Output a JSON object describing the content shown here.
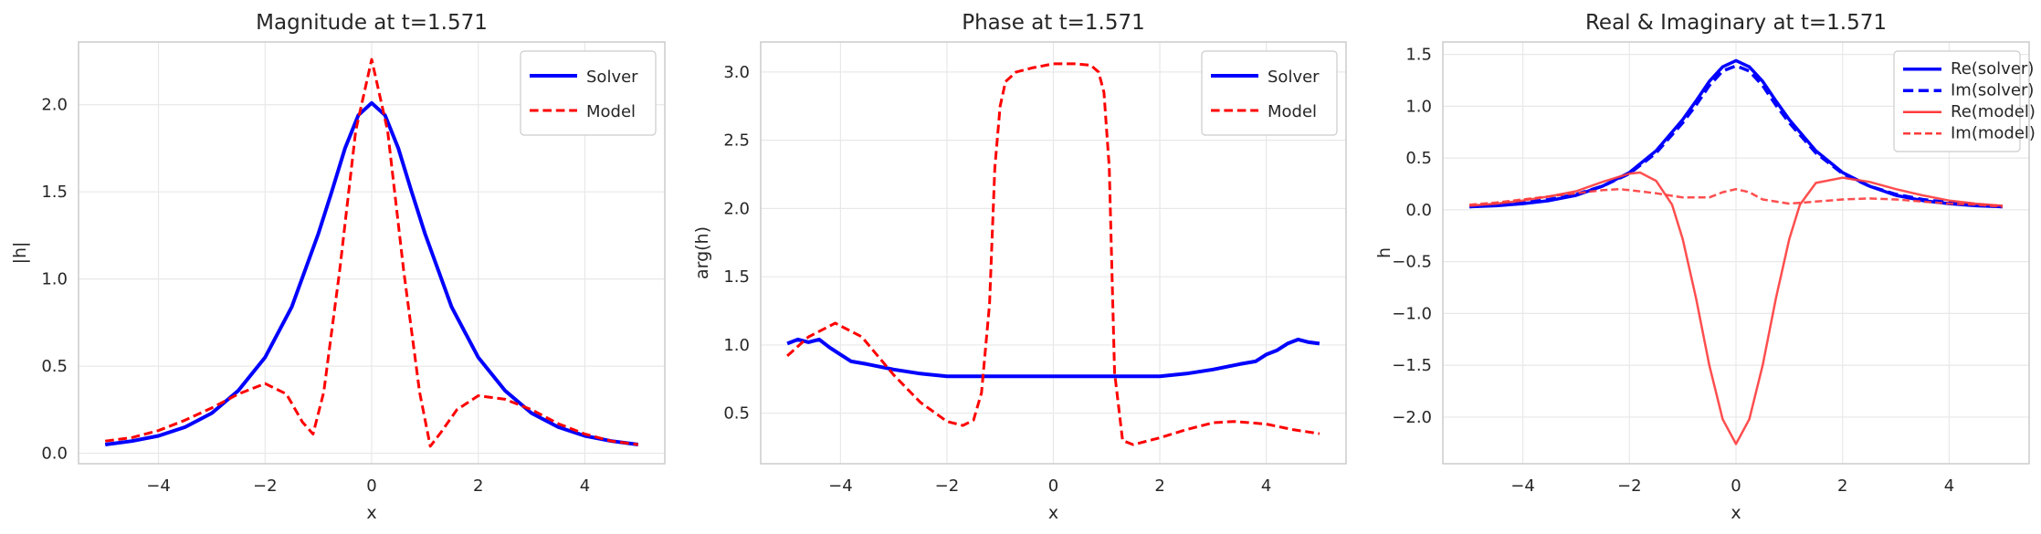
{
  "chart_data": [
    {
      "type": "line",
      "title": "Magnitude at t=1.571",
      "xlabel": "x",
      "ylabel": "|h|",
      "xlim": [
        -5.5,
        5.5
      ],
      "ylim": [
        -0.06,
        2.36
      ],
      "xticks": [
        -4,
        -2,
        0,
        2,
        4
      ],
      "yticks": [
        0.0,
        0.5,
        1.0,
        1.5,
        2.0
      ],
      "ytick_labels": [
        "0.0",
        "0.5",
        "1.0",
        "1.5",
        "2.0"
      ],
      "xtick_labels": [
        "−4",
        "−2",
        "0",
        "2",
        "4"
      ],
      "grid": true,
      "legend": "upper right",
      "series": [
        {
          "name": "Solver",
          "color": "#0000ff",
          "style": "solid",
          "width": 4,
          "x": [
            -5,
            -4.5,
            -4,
            -3.5,
            -3,
            -2.5,
            -2,
            -1.5,
            -1,
            -0.75,
            -0.5,
            -0.25,
            0,
            0.25,
            0.5,
            0.75,
            1,
            1.5,
            2,
            2.5,
            3,
            3.5,
            4,
            4.5,
            5
          ],
          "y": [
            0.05,
            0.07,
            0.1,
            0.15,
            0.23,
            0.36,
            0.55,
            0.84,
            1.26,
            1.5,
            1.75,
            1.94,
            2.01,
            1.94,
            1.75,
            1.5,
            1.26,
            0.84,
            0.55,
            0.36,
            0.23,
            0.15,
            0.1,
            0.07,
            0.05
          ]
        },
        {
          "name": "Model",
          "color": "#ff0000",
          "style": "dashed",
          "width": 3,
          "x": [
            -5,
            -4.5,
            -4,
            -3.5,
            -3,
            -2.5,
            -2,
            -1.6,
            -1.3,
            -1.1,
            -0.9,
            -0.6,
            -0.3,
            0,
            0.3,
            0.6,
            0.9,
            1.1,
            1.3,
            1.6,
            2,
            2.5,
            3,
            3.5,
            4,
            4.5,
            5
          ],
          "y": [
            0.07,
            0.09,
            0.13,
            0.19,
            0.26,
            0.34,
            0.4,
            0.34,
            0.18,
            0.11,
            0.35,
            1.05,
            1.85,
            2.26,
            1.85,
            1.05,
            0.35,
            0.04,
            0.12,
            0.25,
            0.33,
            0.31,
            0.25,
            0.17,
            0.11,
            0.07,
            0.05
          ]
        }
      ]
    },
    {
      "type": "line",
      "title": "Phase at t=1.571",
      "xlabel": "x",
      "ylabel": "arg(h)",
      "xlim": [
        -5.5,
        5.5
      ],
      "ylim": [
        0.13,
        3.22
      ],
      "xticks": [
        -4,
        -2,
        0,
        2,
        4
      ],
      "yticks": [
        0.5,
        1.0,
        1.5,
        2.0,
        2.5,
        3.0
      ],
      "ytick_labels": [
        "0.5",
        "1.0",
        "1.5",
        "2.0",
        "2.5",
        "3.0"
      ],
      "xtick_labels": [
        "−4",
        "−2",
        "0",
        "2",
        "4"
      ],
      "grid": true,
      "legend": "upper right",
      "series": [
        {
          "name": "Solver",
          "color": "#0000ff",
          "style": "solid",
          "width": 4,
          "x": [
            -5,
            -4.8,
            -4.6,
            -4.4,
            -4.2,
            -4,
            -3.8,
            -3.5,
            -3,
            -2.5,
            -2,
            -1.5,
            -1,
            0,
            1,
            1.5,
            2,
            2.5,
            3,
            3.5,
            3.8,
            4,
            4.2,
            4.4,
            4.6,
            4.8,
            5
          ],
          "y": [
            1.01,
            1.04,
            1.02,
            1.04,
            0.98,
            0.93,
            0.88,
            0.86,
            0.82,
            0.79,
            0.77,
            0.77,
            0.77,
            0.77,
            0.77,
            0.77,
            0.77,
            0.79,
            0.82,
            0.86,
            0.88,
            0.93,
            0.96,
            1.01,
            1.04,
            1.02,
            1.01
          ]
        },
        {
          "name": "Model",
          "color": "#ff0000",
          "style": "dashed",
          "width": 3,
          "x": [
            -5,
            -4.6,
            -4.1,
            -3.6,
            -3,
            -2.5,
            -2,
            -1.7,
            -1.5,
            -1.35,
            -1.2,
            -1.1,
            -1,
            -0.9,
            -0.7,
            -0.4,
            0,
            0.4,
            0.7,
            0.85,
            0.95,
            1.05,
            1.15,
            1.3,
            1.5,
            2,
            2.5,
            3,
            3.4,
            4,
            4.5,
            5
          ],
          "y": [
            0.92,
            1.06,
            1.16,
            1.06,
            0.78,
            0.58,
            0.44,
            0.41,
            0.45,
            0.65,
            1.3,
            2.3,
            2.75,
            2.93,
            3.0,
            3.03,
            3.06,
            3.06,
            3.05,
            3.0,
            2.85,
            2.3,
            0.8,
            0.3,
            0.27,
            0.32,
            0.38,
            0.43,
            0.44,
            0.42,
            0.38,
            0.35
          ]
        }
      ]
    },
    {
      "type": "line",
      "title": "Real & Imaginary at t=1.571",
      "xlabel": "x",
      "ylabel": "h",
      "xlim": [
        -5.5,
        5.5
      ],
      "ylim": [
        -2.45,
        1.62
      ],
      "xticks": [
        -4,
        -2,
        0,
        2,
        4
      ],
      "yticks": [
        -2.0,
        -1.5,
        -1.0,
        -0.5,
        0.0,
        0.5,
        1.0,
        1.5
      ],
      "ytick_labels": [
        "−2.0",
        "−1.5",
        "−1.0",
        "−0.5",
        "0.0",
        "0.5",
        "1.0",
        "1.5"
      ],
      "xtick_labels": [
        "−4",
        "−2",
        "0",
        "2",
        "4"
      ],
      "grid": true,
      "legend": "upper right",
      "series": [
        {
          "name": "Re(solver)",
          "color": "#0000ff",
          "style": "solid",
          "width": 3.5,
          "x": [
            -5,
            -4.5,
            -4,
            -3.5,
            -3,
            -2.5,
            -2,
            -1.5,
            -1,
            -0.75,
            -0.5,
            -0.25,
            0,
            0.25,
            0.5,
            0.75,
            1,
            1.5,
            2,
            2.5,
            3,
            3.5,
            4,
            4.5,
            5
          ],
          "y": [
            0.03,
            0.04,
            0.06,
            0.09,
            0.14,
            0.23,
            0.36,
            0.57,
            0.87,
            1.05,
            1.24,
            1.38,
            1.44,
            1.38,
            1.24,
            1.05,
            0.87,
            0.57,
            0.36,
            0.23,
            0.14,
            0.09,
            0.06,
            0.04,
            0.03
          ]
        },
        {
          "name": "Im(solver)",
          "color": "#0000ff",
          "style": "dashed",
          "width": 3.5,
          "x": [
            -5,
            -4.5,
            -4,
            -3.5,
            -3,
            -2.5,
            -2,
            -1.5,
            -1,
            -0.75,
            -0.5,
            -0.25,
            0,
            0.25,
            0.5,
            0.75,
            1,
            1.5,
            2,
            2.5,
            3,
            3.5,
            4,
            4.5,
            5
          ],
          "y": [
            0.03,
            0.05,
            0.07,
            0.1,
            0.15,
            0.23,
            0.35,
            0.55,
            0.84,
            1.01,
            1.2,
            1.34,
            1.39,
            1.34,
            1.2,
            1.01,
            0.84,
            0.55,
            0.35,
            0.23,
            0.15,
            0.1,
            0.07,
            0.05,
            0.03
          ]
        },
        {
          "name": "Re(model)",
          "color": "#ff3b3b",
          "style": "solid",
          "width": 2.5,
          "x": [
            -5,
            -4.5,
            -4,
            -3.5,
            -3,
            -2.5,
            -2,
            -1.8,
            -1.5,
            -1.2,
            -1,
            -0.75,
            -0.5,
            -0.25,
            0,
            0.25,
            0.5,
            0.75,
            1,
            1.2,
            1.5,
            2,
            2.5,
            3,
            3.5,
            4,
            4.5,
            5
          ],
          "y": [
            0.04,
            0.06,
            0.09,
            0.13,
            0.18,
            0.27,
            0.35,
            0.36,
            0.28,
            0.05,
            -0.28,
            -0.85,
            -1.5,
            -2.02,
            -2.26,
            -2.02,
            -1.5,
            -0.85,
            -0.28,
            0.05,
            0.26,
            0.31,
            0.27,
            0.2,
            0.14,
            0.09,
            0.06,
            0.04
          ]
        },
        {
          "name": "Im(model)",
          "color": "#ff3b3b",
          "style": "dashed",
          "width": 2.5,
          "x": [
            -5,
            -4.5,
            -4,
            -3.5,
            -3,
            -2.5,
            -2.2,
            -2,
            -1.5,
            -1,
            -0.5,
            -0.25,
            0,
            0.25,
            0.5,
            1,
            1.5,
            2,
            2.5,
            3,
            3.5,
            4,
            4.5,
            5
          ],
          "y": [
            0.05,
            0.07,
            0.1,
            0.13,
            0.16,
            0.19,
            0.2,
            0.19,
            0.16,
            0.12,
            0.12,
            0.17,
            0.2,
            0.17,
            0.1,
            0.06,
            0.08,
            0.1,
            0.11,
            0.1,
            0.08,
            0.06,
            0.05,
            0.03
          ]
        }
      ]
    }
  ]
}
